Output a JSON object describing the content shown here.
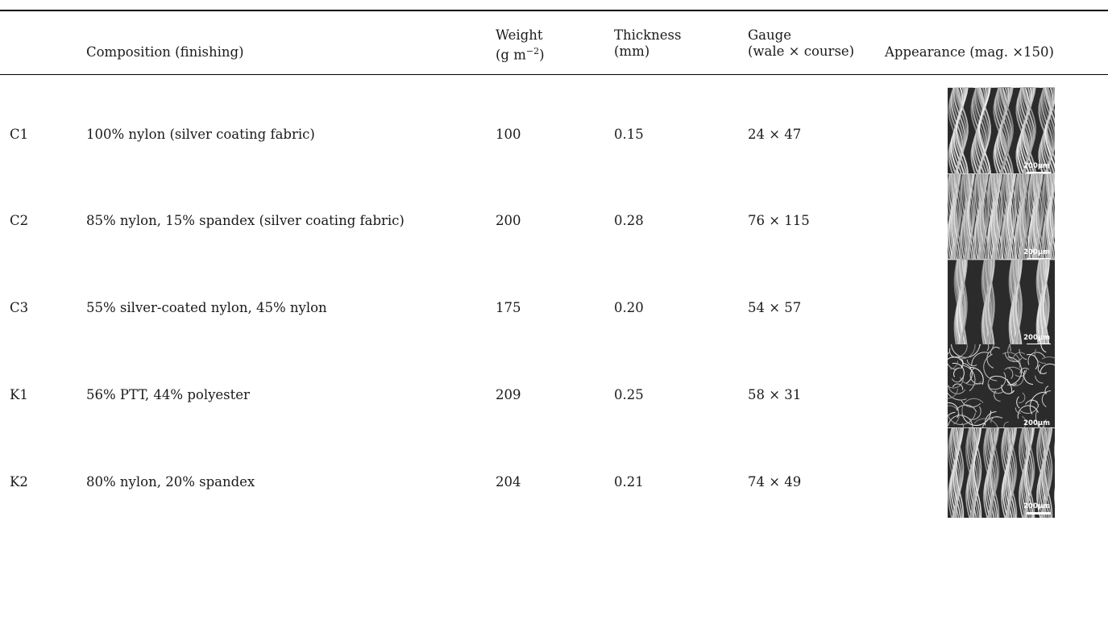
{
  "headers": {
    "composition": "Composition (finishing)",
    "weight_l1": "Weight",
    "weight_l2": "(g m",
    "weight_sup": "−2",
    "weight_close": ")",
    "thickness_l1": "Thickness",
    "thickness_l2": "(mm)",
    "gauge_l1": "Gauge",
    "gauge_l2": "(wale × course)",
    "appearance": "Appearance (mag. ×150)"
  },
  "scale_label": "200μm",
  "rows": [
    {
      "id": "C1",
      "composition": "100% nylon (silver coating fabric)",
      "weight": "100",
      "thickness": "0.15",
      "gauge": "24 × 47",
      "image": "sem-knit-c1"
    },
    {
      "id": "C2",
      "composition": "85% nylon, 15% spandex (silver coating fabric)",
      "weight": "200",
      "thickness": "0.28",
      "gauge": "76 × 115",
      "image": "sem-knit-c2"
    },
    {
      "id": "C3",
      "composition": "55% silver-coated nylon, 45% nylon",
      "weight": "175",
      "thickness": "0.20",
      "gauge": "54 × 57",
      "image": "sem-knit-c3"
    },
    {
      "id": "K1",
      "composition": "56% PTT, 44% polyester",
      "weight": "209",
      "thickness": "0.25",
      "gauge": "58 × 31",
      "image": "sem-knit-k1"
    },
    {
      "id": "K2",
      "composition": "80% nylon, 20% spandex",
      "weight": "204",
      "thickness": "0.21",
      "gauge": "74 × 49",
      "image": "sem-knit-k2"
    }
  ]
}
